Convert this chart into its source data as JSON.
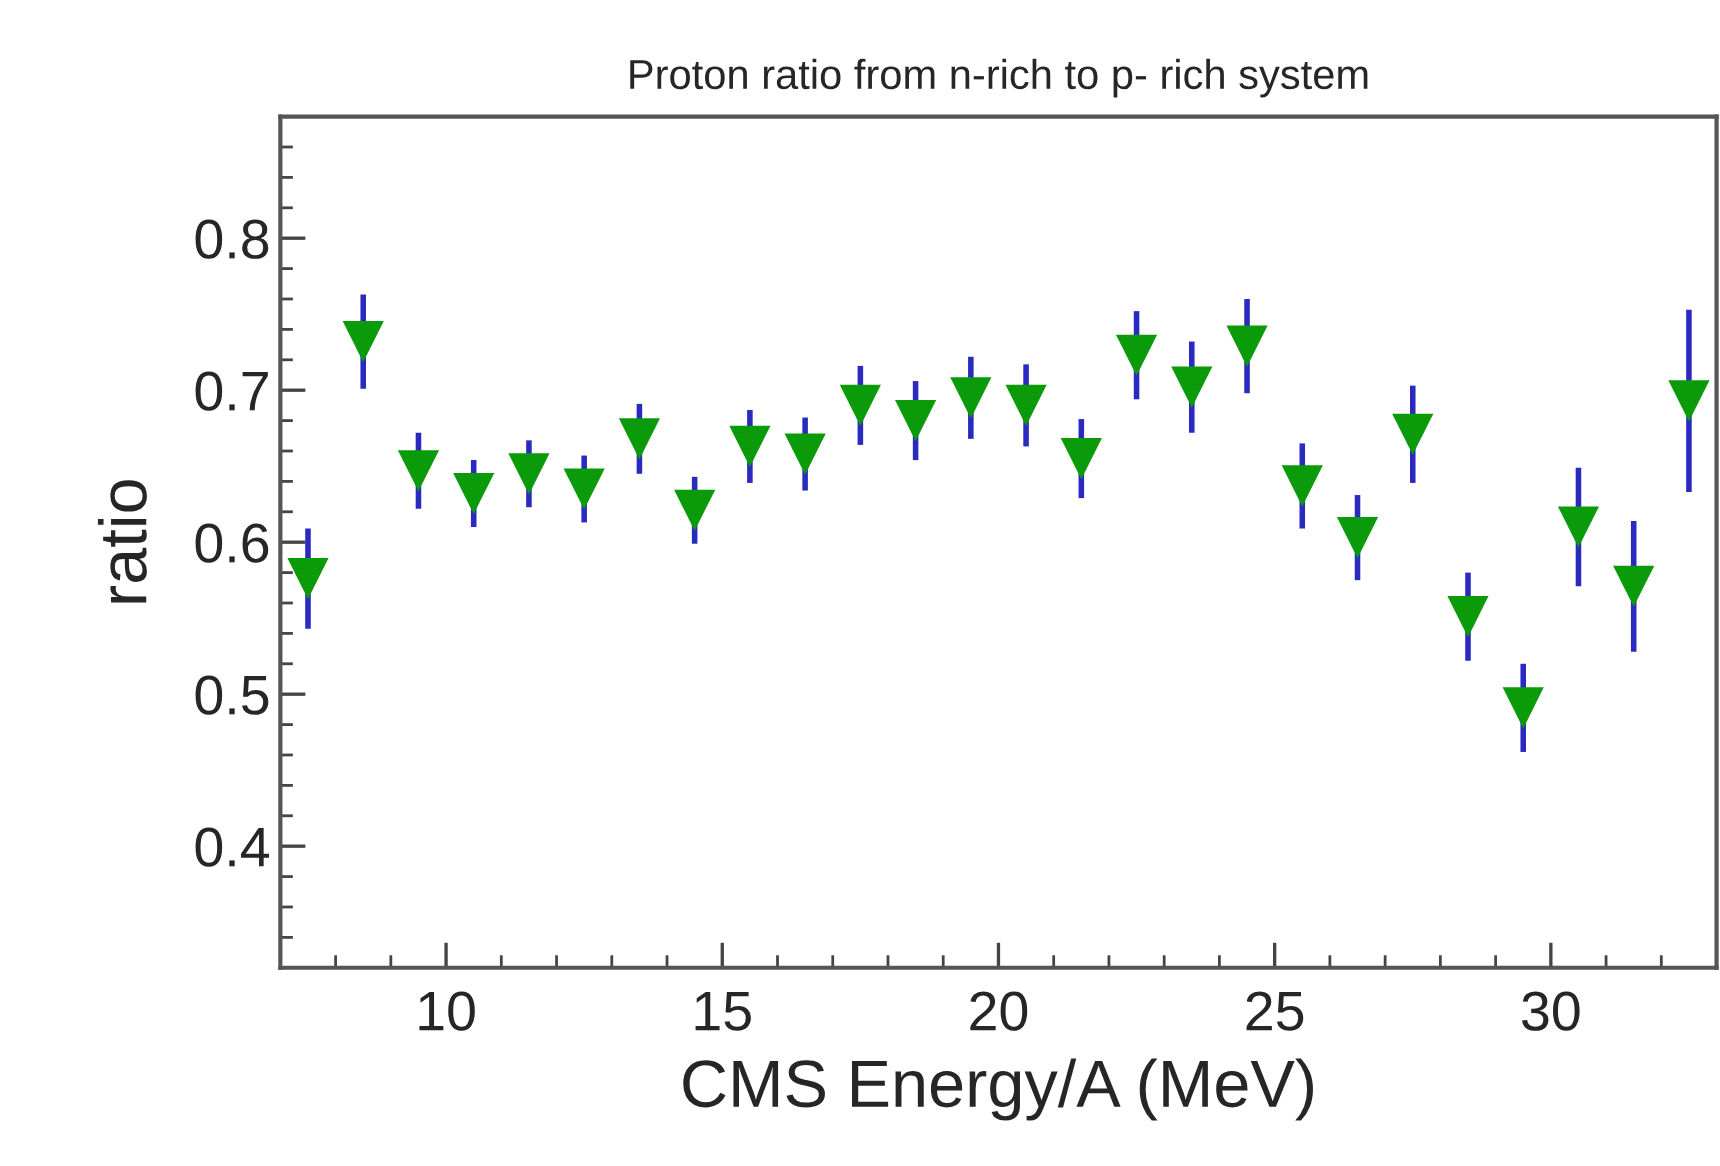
{
  "chart_data": {
    "type": "scatter",
    "title": "Proton ratio from n-rich to p- rich system",
    "xlabel": "CMS Energy/A (MeV)",
    "ylabel": "ratio",
    "x": [
      7.5,
      8.5,
      9.5,
      10.5,
      11.5,
      12.5,
      13.5,
      14.5,
      15.5,
      16.5,
      17.5,
      18.5,
      19.5,
      20.5,
      21.5,
      22.5,
      23.5,
      24.5,
      25.5,
      26.5,
      27.5,
      28.5,
      29.5,
      30.5,
      31.5,
      32.5
    ],
    "series": [
      {
        "color": "#0a9a0a",
        "values": [
          0.576,
          0.732,
          0.647,
          0.632,
          0.645,
          0.635,
          0.668,
          0.621,
          0.663,
          0.658,
          0.69,
          0.68,
          0.695,
          0.69,
          0.655,
          0.723,
          0.702,
          0.729,
          0.637,
          0.603,
          0.671,
          0.551,
          0.491,
          0.61,
          0.571,
          0.693
        ],
        "errors": [
          0.033,
          0.031,
          0.025,
          0.022,
          0.022,
          0.022,
          0.023,
          0.022,
          0.024,
          0.024,
          0.026,
          0.026,
          0.027,
          0.027,
          0.026,
          0.029,
          0.03,
          0.031,
          0.028,
          0.028,
          0.032,
          0.029,
          0.029,
          0.039,
          0.043,
          0.06
        ]
      }
    ],
    "xlim": [
      7,
      33
    ],
    "xticks": [
      10,
      15,
      20,
      25,
      30
    ],
    "ylim": [
      0.32,
      0.88
    ],
    "yticks": [
      0.4,
      0.5,
      0.6,
      0.7,
      0.8
    ],
    "marker": "triangle",
    "grid": false,
    "legend": false
  }
}
